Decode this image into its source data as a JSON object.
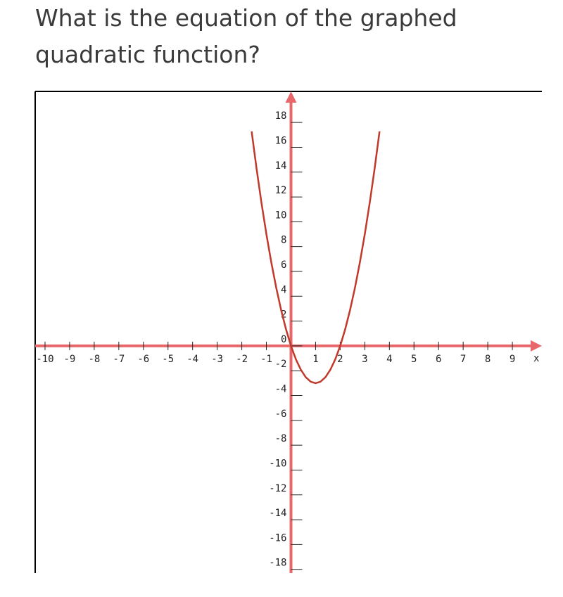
{
  "question": "What is the equation of the graphed quadratic function?",
  "chart_data": {
    "type": "line",
    "x_label": "x",
    "x": [
      -1.6,
      -1.4,
      -1.2,
      -1.0,
      -0.8,
      -0.6,
      -0.4,
      -0.2,
      0,
      0.2,
      0.4,
      0.6,
      0.8,
      1.0,
      1.2,
      1.4,
      1.6,
      1.8,
      2.0,
      2.2,
      2.4,
      2.6,
      2.8,
      3.0,
      3.2,
      3.4,
      3.6
    ],
    "series": [
      {
        "color": "#c0392b",
        "values": [
          17.28,
          14.28,
          11.52,
          9,
          6.72,
          4.68,
          2.88,
          1.32,
          0,
          -1.08,
          -1.92,
          -2.52,
          -2.88,
          -3,
          -2.88,
          -2.52,
          -1.92,
          -1.08,
          0,
          1.32,
          2.88,
          4.68,
          6.72,
          9,
          11.52,
          14.28,
          17.28
        ]
      }
    ],
    "xlim": [
      -10.4,
      10.2
    ],
    "ylim": [
      -18.3,
      20.5
    ],
    "xticks": [
      -10,
      -9,
      -8,
      -7,
      -6,
      -5,
      -4,
      -3,
      -2,
      -1,
      1,
      2,
      3,
      4,
      5,
      6,
      7,
      8,
      9
    ],
    "yticks": [
      -18,
      -16,
      -14,
      -12,
      -10,
      -8,
      -6,
      -4,
      -2,
      0,
      2,
      4,
      6,
      8,
      10,
      12,
      14,
      16,
      18
    ],
    "axis_color": "#e8676b"
  }
}
